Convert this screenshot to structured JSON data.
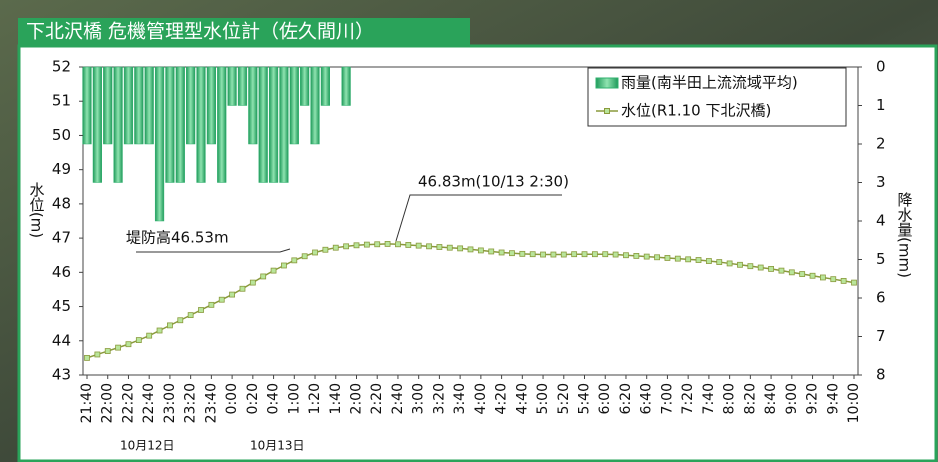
{
  "chart_data": {
    "type": "combo",
    "title": "下北沢橋 危機管理型水位計（佐久間川）",
    "y_label": "水位(m)",
    "y2_label": "降水量(mm)",
    "categories": [
      "21:40",
      null,
      "22:00",
      null,
      "22:20",
      null,
      "22:40",
      null,
      "23:00",
      null,
      "23:20",
      null,
      "23:40",
      null,
      "0:00",
      null,
      "0:20",
      null,
      "0:40",
      null,
      "1:00",
      null,
      "1:20",
      null,
      "1:40",
      null,
      "2:00",
      null,
      "2:20",
      null,
      "2:40",
      null,
      "3:00",
      null,
      "3:20",
      null,
      "3:40",
      null,
      "4:00",
      null,
      "4:20",
      null,
      "4:40",
      null,
      "5:00",
      null,
      "5:20",
      null,
      "5:40",
      null,
      "6:00",
      null,
      "6:20",
      null,
      "6:40",
      null,
      "7:00",
      null,
      "7:20",
      null,
      "7:40",
      null,
      "8:00",
      null,
      "8:20",
      null,
      "8:40",
      null,
      "9:00",
      null,
      "9:20",
      null,
      "9:40",
      null,
      "10:00"
    ],
    "date_labels": [
      "10月12日",
      "10月13日"
    ],
    "series": [
      {
        "name": "雨量(南半田上流流域平均)",
        "type": "bar",
        "axis": "y2",
        "color": "#2fb06e",
        "values": [
          2,
          3,
          2,
          3,
          2,
          2,
          2,
          4,
          3,
          3,
          2,
          3,
          2,
          3,
          1,
          1,
          2,
          3,
          3,
          3,
          2,
          1,
          2,
          1,
          0,
          1,
          0,
          0,
          0,
          0,
          0,
          0,
          0,
          0,
          0,
          0,
          0,
          0,
          0,
          0,
          0,
          0,
          0,
          0,
          0,
          0,
          0,
          0,
          0,
          0,
          0,
          0,
          0,
          0,
          0,
          0,
          0,
          0,
          0,
          0,
          0,
          0,
          0,
          0,
          0,
          0,
          0,
          0,
          0,
          0,
          0,
          0,
          0,
          0,
          0
        ]
      },
      {
        "name": "水位(R1.10 下北沢橋)",
        "type": "line",
        "color": "#8a9a3c",
        "values": [
          43.5,
          43.6,
          43.7,
          43.8,
          43.9,
          44.02,
          44.15,
          44.3,
          44.45,
          44.6,
          44.75,
          44.9,
          45.05,
          45.2,
          45.35,
          45.52,
          45.7,
          45.88,
          46.05,
          46.2,
          46.35,
          46.47,
          46.58,
          46.66,
          46.72,
          46.76,
          46.79,
          46.81,
          46.82,
          46.83,
          46.82,
          46.8,
          46.78,
          46.76,
          46.74,
          46.72,
          46.7,
          46.67,
          46.64,
          46.61,
          46.58,
          46.56,
          46.54,
          46.53,
          46.52,
          46.52,
          46.52,
          46.53,
          46.53,
          46.53,
          46.53,
          46.52,
          46.5,
          46.48,
          46.46,
          46.44,
          46.42,
          46.4,
          46.38,
          46.36,
          46.33,
          46.3,
          46.26,
          46.22,
          46.18,
          46.14,
          46.1,
          46.05,
          46.0,
          45.95,
          45.9,
          45.85,
          45.8,
          45.75,
          45.7
        ]
      }
    ],
    "ylim": [
      43,
      52
    ],
    "yticks": [
      43,
      44,
      45,
      46,
      47,
      48,
      49,
      50,
      51,
      52
    ],
    "y2lim": [
      8,
      0
    ],
    "y2ticks": [
      0,
      1,
      2,
      3,
      4,
      5,
      6,
      7,
      8
    ],
    "grid": false,
    "legend": "upper right",
    "annotations": [
      "46.83m(10/13 2:30)",
      "堤防高46.53m"
    ]
  }
}
